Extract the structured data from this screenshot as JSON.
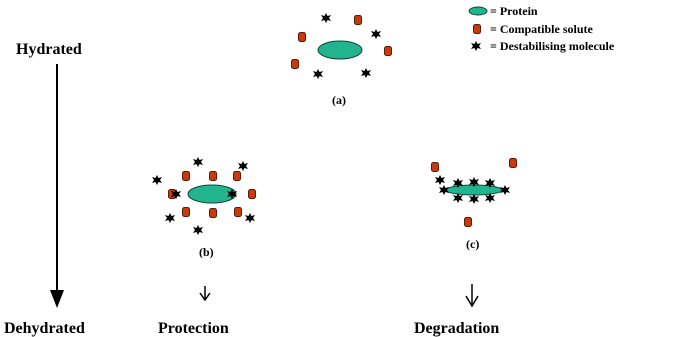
{
  "labels": {
    "hydrated": "Hydrated",
    "dehydrated": "Dehydrated",
    "protection": "Protection",
    "degradation": "Degradation",
    "a": "(a)",
    "b": "(b)",
    "c": "(c)"
  },
  "legend": {
    "protein": "= Protein",
    "solute": "= Compatible solute",
    "destabilising": "= Destabilising molecule"
  }
}
